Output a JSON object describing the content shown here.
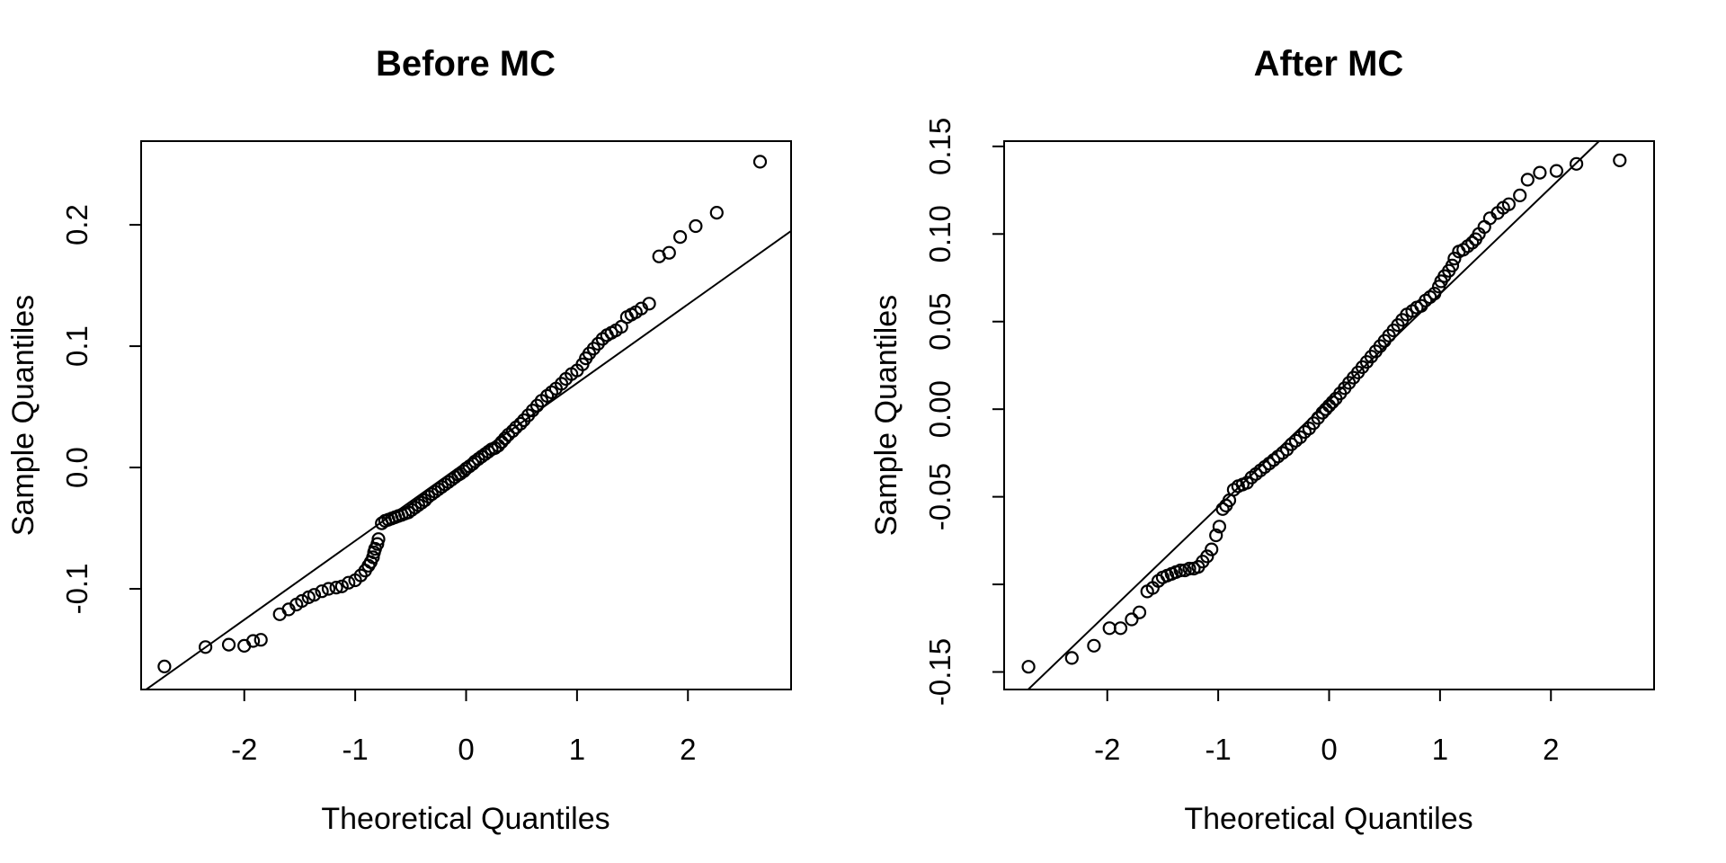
{
  "figure": {
    "background": "#ffffff",
    "foreground": "#000000"
  },
  "chart_data": [
    {
      "type": "scatter",
      "title": "Before MC",
      "xlabel": "Theoretical Quantiles",
      "ylabel": "Sample Quantiles",
      "xlim": [
        -2.93,
        2.93
      ],
      "ylim": [
        -0.183,
        0.269
      ],
      "grid": false,
      "xticks": [
        -2,
        -1,
        0,
        1,
        2
      ],
      "xtick_labels": [
        "-2",
        "-1",
        "0",
        "1",
        "2"
      ],
      "yticks": [
        0.2,
        0.1,
        0.0,
        -0.1
      ],
      "ytick_labels": [
        "0.2",
        "0.1",
        "0.0",
        "-0.1"
      ],
      "ref_line": {
        "intercept": 0.0045,
        "slope": 0.065
      },
      "points": [
        [
          -2.72,
          -0.164
        ],
        [
          -2.35,
          -0.148
        ],
        [
          -2.14,
          -0.146
        ],
        [
          -2.0,
          -0.147
        ],
        [
          -1.92,
          -0.143
        ],
        [
          -1.85,
          -0.142
        ],
        [
          -1.68,
          -0.121
        ],
        [
          -1.6,
          -0.117
        ],
        [
          -1.53,
          -0.113
        ],
        [
          -1.48,
          -0.11
        ],
        [
          -1.42,
          -0.107
        ],
        [
          -1.37,
          -0.105
        ],
        [
          -1.3,
          -0.102
        ],
        [
          -1.24,
          -0.1
        ],
        [
          -1.17,
          -0.099
        ],
        [
          -1.12,
          -0.098
        ],
        [
          -1.06,
          -0.095
        ],
        [
          -1.0,
          -0.093
        ],
        [
          -0.95,
          -0.089
        ],
        [
          -0.91,
          -0.085
        ],
        [
          -0.88,
          -0.081
        ],
        [
          -0.86,
          -0.078
        ],
        [
          -0.84,
          -0.074
        ],
        [
          -0.83,
          -0.07
        ],
        [
          -0.82,
          -0.067
        ],
        [
          -0.8,
          -0.063
        ],
        [
          -0.79,
          -0.059
        ],
        [
          -0.76,
          -0.046
        ],
        [
          -0.73,
          -0.044
        ],
        [
          -0.7,
          -0.043
        ],
        [
          -0.67,
          -0.042
        ],
        [
          -0.64,
          -0.041
        ],
        [
          -0.61,
          -0.04
        ],
        [
          -0.58,
          -0.039
        ],
        [
          -0.55,
          -0.038
        ],
        [
          -0.52,
          -0.037
        ],
        [
          -0.49,
          -0.035
        ],
        [
          -0.46,
          -0.033
        ],
        [
          -0.43,
          -0.031
        ],
        [
          -0.4,
          -0.029
        ],
        [
          -0.37,
          -0.027
        ],
        [
          -0.34,
          -0.024
        ],
        [
          -0.31,
          -0.022
        ],
        [
          -0.28,
          -0.02
        ],
        [
          -0.25,
          -0.018
        ],
        [
          -0.22,
          -0.016
        ],
        [
          -0.19,
          -0.014
        ],
        [
          -0.16,
          -0.012
        ],
        [
          -0.13,
          -0.01
        ],
        [
          -0.1,
          -0.008
        ],
        [
          -0.07,
          -0.006
        ],
        [
          -0.05,
          -0.005
        ],
        [
          -0.02,
          -0.003
        ],
        [
          0.0,
          -0.001
        ],
        [
          0.03,
          0.001
        ],
        [
          0.06,
          0.003
        ],
        [
          0.08,
          0.005
        ],
        [
          0.11,
          0.007
        ],
        [
          0.14,
          0.009
        ],
        [
          0.17,
          0.011
        ],
        [
          0.2,
          0.013
        ],
        [
          0.23,
          0.015
        ],
        [
          0.26,
          0.016
        ],
        [
          0.29,
          0.018
        ],
        [
          0.32,
          0.021
        ],
        [
          0.35,
          0.024
        ],
        [
          0.38,
          0.027
        ],
        [
          0.42,
          0.03
        ],
        [
          0.45,
          0.033
        ],
        [
          0.49,
          0.036
        ],
        [
          0.52,
          0.039
        ],
        [
          0.56,
          0.043
        ],
        [
          0.6,
          0.047
        ],
        [
          0.64,
          0.051
        ],
        [
          0.68,
          0.055
        ],
        [
          0.73,
          0.059
        ],
        [
          0.77,
          0.062
        ],
        [
          0.81,
          0.065
        ],
        [
          0.86,
          0.069
        ],
        [
          0.9,
          0.073
        ],
        [
          0.95,
          0.077
        ],
        [
          1.0,
          0.08
        ],
        [
          1.05,
          0.085
        ],
        [
          1.08,
          0.09
        ],
        [
          1.11,
          0.094
        ],
        [
          1.15,
          0.098
        ],
        [
          1.19,
          0.102
        ],
        [
          1.23,
          0.106
        ],
        [
          1.27,
          0.109
        ],
        [
          1.31,
          0.111
        ],
        [
          1.35,
          0.113
        ],
        [
          1.4,
          0.116
        ],
        [
          1.45,
          0.124
        ],
        [
          1.49,
          0.126
        ],
        [
          1.53,
          0.128
        ],
        [
          1.58,
          0.131
        ],
        [
          1.65,
          0.135
        ],
        [
          1.74,
          0.174
        ],
        [
          1.83,
          0.177
        ],
        [
          1.93,
          0.19
        ],
        [
          2.07,
          0.199
        ],
        [
          2.26,
          0.21
        ],
        [
          2.65,
          0.252
        ]
      ]
    },
    {
      "type": "scatter",
      "title": "After MC",
      "xlabel": "Theoretical Quantiles",
      "ylabel": "Sample Quantiles",
      "xlim": [
        -2.93,
        2.93
      ],
      "ylim": [
        -0.16,
        0.153
      ],
      "grid": false,
      "xticks": [
        -2,
        -1,
        0,
        1,
        2
      ],
      "xtick_labels": [
        "-2",
        "-1",
        "0",
        "1",
        "2"
      ],
      "yticks": [
        0.15,
        0.1,
        0.05,
        0.0,
        -0.05,
        -0.1,
        -0.15
      ],
      "ytick_labels": [
        "0.15",
        "0.10",
        "0.05",
        "0.00",
        "-0.05",
        "",
        "-0.15"
      ],
      "ref_line": {
        "intercept": 0.005,
        "slope": 0.0608
      },
      "points": [
        [
          -2.71,
          -0.147
        ],
        [
          -2.32,
          -0.142
        ],
        [
          -2.12,
          -0.135
        ],
        [
          -1.98,
          -0.125
        ],
        [
          -1.88,
          -0.125
        ],
        [
          -1.78,
          -0.12
        ],
        [
          -1.71,
          -0.116
        ],
        [
          -1.64,
          -0.104
        ],
        [
          -1.59,
          -0.102
        ],
        [
          -1.54,
          -0.098
        ],
        [
          -1.5,
          -0.096
        ],
        [
          -1.46,
          -0.095
        ],
        [
          -1.42,
          -0.094
        ],
        [
          -1.38,
          -0.093
        ],
        [
          -1.34,
          -0.092
        ],
        [
          -1.3,
          -0.092
        ],
        [
          -1.26,
          -0.091
        ],
        [
          -1.22,
          -0.091
        ],
        [
          -1.18,
          -0.09
        ],
        [
          -1.14,
          -0.087
        ],
        [
          -1.1,
          -0.084
        ],
        [
          -1.06,
          -0.08
        ],
        [
          -1.02,
          -0.072
        ],
        [
          -0.99,
          -0.067
        ],
        [
          -0.96,
          -0.057
        ],
        [
          -0.93,
          -0.055
        ],
        [
          -0.9,
          -0.052
        ],
        [
          -0.86,
          -0.046
        ],
        [
          -0.82,
          -0.044
        ],
        [
          -0.78,
          -0.043
        ],
        [
          -0.74,
          -0.042
        ],
        [
          -0.7,
          -0.039
        ],
        [
          -0.66,
          -0.037
        ],
        [
          -0.62,
          -0.035
        ],
        [
          -0.58,
          -0.033
        ],
        [
          -0.54,
          -0.031
        ],
        [
          -0.5,
          -0.029
        ],
        [
          -0.46,
          -0.027
        ],
        [
          -0.42,
          -0.025
        ],
        [
          -0.38,
          -0.023
        ],
        [
          -0.34,
          -0.02
        ],
        [
          -0.3,
          -0.018
        ],
        [
          -0.26,
          -0.016
        ],
        [
          -0.22,
          -0.013
        ],
        [
          -0.18,
          -0.011
        ],
        [
          -0.14,
          -0.008
        ],
        [
          -0.1,
          -0.005
        ],
        [
          -0.06,
          -0.002
        ],
        [
          -0.03,
          0.0
        ],
        [
          0.0,
          0.002
        ],
        [
          0.03,
          0.004
        ],
        [
          0.06,
          0.006
        ],
        [
          0.1,
          0.009
        ],
        [
          0.14,
          0.012
        ],
        [
          0.18,
          0.015
        ],
        [
          0.22,
          0.018
        ],
        [
          0.26,
          0.021
        ],
        [
          0.3,
          0.024
        ],
        [
          0.34,
          0.027
        ],
        [
          0.38,
          0.03
        ],
        [
          0.42,
          0.033
        ],
        [
          0.46,
          0.036
        ],
        [
          0.5,
          0.039
        ],
        [
          0.54,
          0.042
        ],
        [
          0.58,
          0.045
        ],
        [
          0.62,
          0.048
        ],
        [
          0.66,
          0.051
        ],
        [
          0.7,
          0.054
        ],
        [
          0.75,
          0.056
        ],
        [
          0.79,
          0.058
        ],
        [
          0.83,
          0.059
        ],
        [
          0.87,
          0.062
        ],
        [
          0.91,
          0.064
        ],
        [
          0.95,
          0.066
        ],
        [
          0.99,
          0.07
        ],
        [
          1.01,
          0.073
        ],
        [
          1.04,
          0.076
        ],
        [
          1.08,
          0.079
        ],
        [
          1.11,
          0.082
        ],
        [
          1.13,
          0.086
        ],
        [
          1.17,
          0.09
        ],
        [
          1.21,
          0.091
        ],
        [
          1.25,
          0.093
        ],
        [
          1.29,
          0.095
        ],
        [
          1.32,
          0.097
        ],
        [
          1.35,
          0.1
        ],
        [
          1.4,
          0.104
        ],
        [
          1.45,
          0.109
        ],
        [
          1.52,
          0.112
        ],
        [
          1.57,
          0.115
        ],
        [
          1.62,
          0.117
        ],
        [
          1.72,
          0.122
        ],
        [
          1.79,
          0.131
        ],
        [
          1.9,
          0.135
        ],
        [
          2.05,
          0.136
        ],
        [
          2.23,
          0.14
        ],
        [
          2.62,
          0.142
        ]
      ]
    }
  ]
}
